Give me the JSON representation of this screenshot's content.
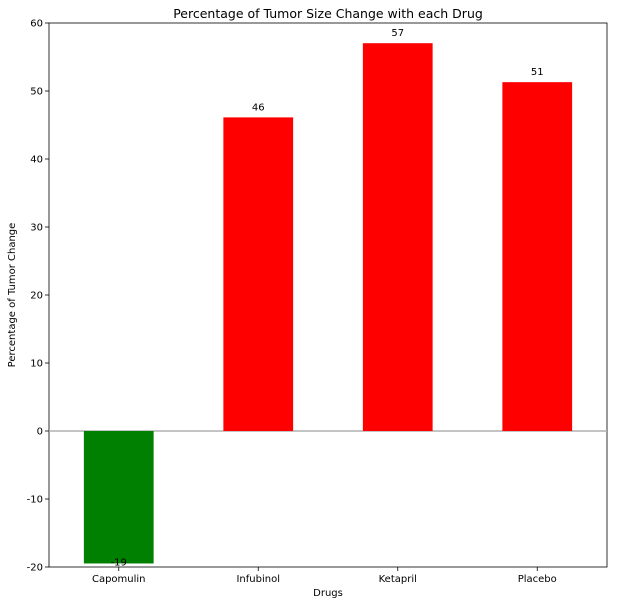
{
  "chart_data": {
    "type": "bar",
    "title": "Percentage of Tumor Size Change with each Drug",
    "xlabel": "Drugs",
    "ylabel": "Percentage of Tumor Change",
    "categories": [
      "Capomulin",
      "Infubinol",
      "Ketapril",
      "Placebo"
    ],
    "values": [
      -19.48,
      46.12,
      57.03,
      51.3
    ],
    "data_labels": [
      "-19",
      "46",
      "57",
      "51"
    ],
    "bar_colors": [
      "#008000",
      "#ff0000",
      "#ff0000",
      "#ff0000"
    ],
    "ylim": [
      -20,
      60
    ],
    "yticks": [
      -20,
      -10,
      0,
      10,
      20,
      30,
      40,
      50,
      60
    ],
    "zero_line": true,
    "zero_line_color": "#b0b0b0",
    "grid": false,
    "legend": "none"
  }
}
